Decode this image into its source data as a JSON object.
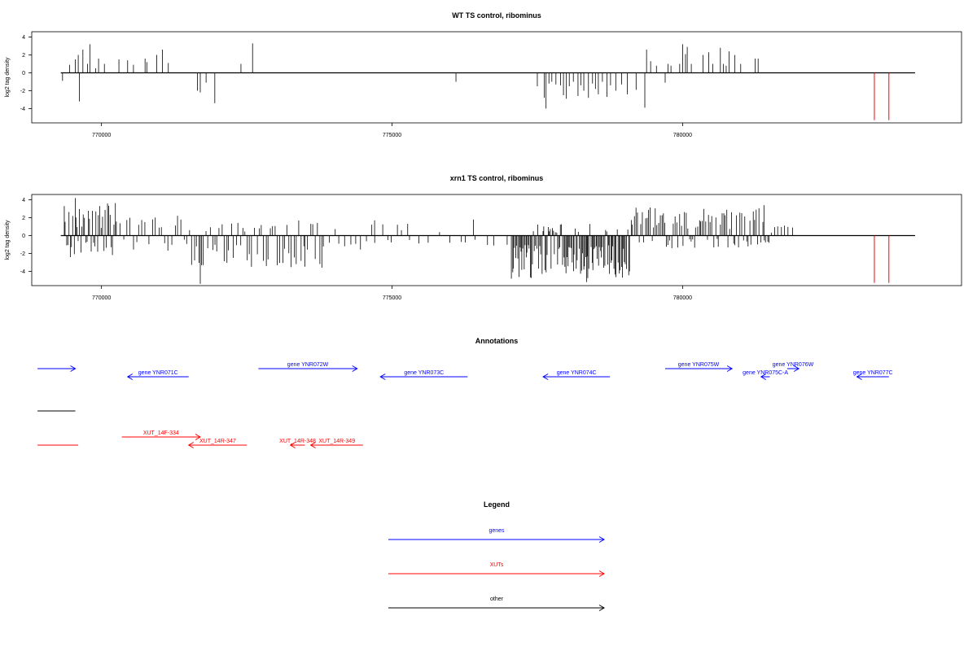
{
  "colors": {
    "gene": "#0000ff",
    "xut": "#ff0000",
    "other": "#000000",
    "bar": "#000000",
    "marker": "#ff0000"
  },
  "chart_data": [
    {
      "type": "bar",
      "title": "WT TS control, ribominus",
      "ylabel": "log2 tag density",
      "xlim": [
        768800,
        784800
      ],
      "ylim": [
        -5.6,
        4.6
      ],
      "xticks": [
        770000,
        775000,
        780000
      ],
      "xtick_labels": [
        "770000",
        "775000",
        "780000"
      ],
      "yticks": [
        4,
        2,
        0,
        -2,
        -4
      ],
      "ytick_labels": [
        "4",
        "2",
        "0",
        "-2",
        "-4"
      ],
      "x_start": 769300,
      "x_end": 784000,
      "red_markers": [
        783300,
        783550
      ],
      "points": [
        [
          769330,
          -0.9
        ],
        [
          769450,
          0.9
        ],
        [
          769550,
          1.5
        ],
        [
          769600,
          2.0
        ],
        [
          769620,
          -3.2
        ],
        [
          769680,
          2.6
        ],
        [
          769760,
          1.0
        ],
        [
          769800,
          3.2
        ],
        [
          769900,
          0.5
        ],
        [
          769950,
          1.6
        ],
        [
          770050,
          1.0
        ],
        [
          770300,
          1.5
        ],
        [
          770450,
          1.4
        ],
        [
          770550,
          0.9
        ],
        [
          770750,
          1.6
        ],
        [
          770780,
          1.2
        ],
        [
          770950,
          2.0
        ],
        [
          771050,
          2.6
        ],
        [
          771150,
          1.1
        ],
        [
          771650,
          -2.0
        ],
        [
          771700,
          -2.2
        ],
        [
          771800,
          -1.1
        ],
        [
          771950,
          -3.4
        ],
        [
          772400,
          1.0
        ],
        [
          772600,
          3.3
        ],
        [
          776100,
          -1.0
        ],
        [
          777500,
          -1.5
        ],
        [
          777620,
          -2.8
        ],
        [
          777650,
          -4.0
        ],
        [
          777700,
          -1.2
        ],
        [
          777750,
          -1.0
        ],
        [
          777820,
          -1.3
        ],
        [
          777900,
          -1.4
        ],
        [
          777950,
          -2.5
        ],
        [
          778000,
          -2.9
        ],
        [
          778050,
          -1.5
        ],
        [
          778120,
          -1.0
        ],
        [
          778200,
          -2.6
        ],
        [
          778250,
          -1.4
        ],
        [
          778300,
          -2.0
        ],
        [
          778380,
          -2.8
        ],
        [
          778450,
          -1.2
        ],
        [
          778500,
          -1.8
        ],
        [
          778550,
          -2.4
        ],
        [
          778620,
          -1.0
        ],
        [
          778700,
          -2.7
        ],
        [
          778760,
          -1.4
        ],
        [
          778850,
          -2.0
        ],
        [
          778950,
          -1.3
        ],
        [
          779050,
          -2.4
        ],
        [
          779200,
          -1.9
        ],
        [
          779350,
          -3.9
        ],
        [
          779380,
          2.6
        ],
        [
          779450,
          1.3
        ],
        [
          779550,
          0.8
        ],
        [
          779700,
          -1.1
        ],
        [
          779750,
          1.0
        ],
        [
          779800,
          0.8
        ],
        [
          779950,
          1.0
        ],
        [
          780000,
          3.2
        ],
        [
          780050,
          2.1
        ],
        [
          780080,
          2.9
        ],
        [
          780150,
          1.0
        ],
        [
          780350,
          2.0
        ],
        [
          780450,
          2.3
        ],
        [
          780520,
          1.0
        ],
        [
          780650,
          2.8
        ],
        [
          780700,
          1.0
        ],
        [
          780750,
          0.8
        ],
        [
          780800,
          2.4
        ],
        [
          780900,
          2.0
        ],
        [
          781000,
          1.0
        ],
        [
          781250,
          1.6
        ],
        [
          781300,
          1.6
        ]
      ]
    },
    {
      "type": "bar",
      "title": "xrn1 TS control, ribominus",
      "ylabel": "log2 tag density",
      "xlim": [
        768800,
        784800
      ],
      "ylim": [
        -5.6,
        4.6
      ],
      "xticks": [
        770000,
        775000,
        780000
      ],
      "xtick_labels": [
        "770000",
        "775000",
        "780000"
      ],
      "yticks": [
        4,
        2,
        0,
        -2,
        -4
      ],
      "ytick_labels": [
        "4",
        "2",
        "0",
        "-2",
        "-4"
      ],
      "x_start": 769300,
      "x_end": 784000,
      "red_markers": [
        783300,
        783550
      ],
      "generator": "dense",
      "clusters": [
        {
          "from": 769350,
          "to": 770250,
          "step": 22,
          "pos": 3.3,
          "neg": 2.4
        },
        {
          "from": 770250,
          "to": 771500,
          "step": 55,
          "pos": 2.0,
          "neg": 1.5
        },
        {
          "from": 771500,
          "to": 773800,
          "step": 40,
          "pos": 1.5,
          "neg": 3.5
        },
        {
          "from": 773800,
          "to": 775300,
          "step": 90,
          "pos": 1.2,
          "neg": 1.6
        },
        {
          "from": 775300,
          "to": 777000,
          "step": 160,
          "pos": 0.6,
          "neg": 1.0
        },
        {
          "from": 777050,
          "to": 779100,
          "step": 18,
          "pos": 1.2,
          "neg": 4.2
        },
        {
          "from": 779100,
          "to": 781500,
          "step": 28,
          "pos": 2.8,
          "neg": 1.3
        },
        {
          "from": 781500,
          "to": 781900,
          "step": 60,
          "pos": 1.0,
          "neg": 0.2
        }
      ],
      "spikes": [
        [
          769550,
          4.2
        ],
        [
          771700,
          -5.4
        ],
        [
          781400,
          3.4
        ],
        [
          778350,
          -5.2
        ],
        [
          776400,
          1.8
        ],
        [
          774700,
          1.7
        ]
      ]
    }
  ],
  "annotations": {
    "title": "Annotations",
    "genes": [
      {
        "label": "",
        "start": 768900,
        "end": 769550,
        "dir": "right",
        "row": 0
      },
      {
        "label": "gene YNR071C",
        "start": 770450,
        "end": 771500,
        "dir": "left",
        "row": 1
      },
      {
        "label": "gene YNR072W",
        "start": 772700,
        "end": 774400,
        "dir": "right",
        "row": 0
      },
      {
        "label": "gene YNR073C",
        "start": 774800,
        "end": 776300,
        "dir": "left",
        "row": 1
      },
      {
        "label": "gene YNR074C",
        "start": 777600,
        "end": 778750,
        "dir": "left",
        "row": 1
      },
      {
        "label": "gene YNR075W",
        "start": 779700,
        "end": 780850,
        "dir": "right",
        "row": 0
      },
      {
        "label": "gene YNR075C-A",
        "start": 781350,
        "end": 781500,
        "dir": "left",
        "row": 1
      },
      {
        "label": "gene YNR076W",
        "start": 781800,
        "end": 782000,
        "dir": "right",
        "row": 0
      },
      {
        "label": "gene YNR077C",
        "start": 783000,
        "end": 783550,
        "dir": "left",
        "row": 1
      }
    ],
    "other": [
      {
        "start": 768900,
        "end": 769550
      }
    ],
    "xuts": [
      {
        "label": "",
        "start": 768900,
        "end": 769600,
        "dir": "none",
        "row": 1
      },
      {
        "label": "XUT_14F-334",
        "start": 770350,
        "end": 771700,
        "dir": "right",
        "row": 0
      },
      {
        "label": "XUT_14R-347",
        "start": 771500,
        "end": 772500,
        "dir": "left",
        "row": 1
      },
      {
        "label": "XUT_14R-348",
        "start": 773250,
        "end": 773500,
        "dir": "left",
        "row": 1
      },
      {
        "label": "XUT_14R-349",
        "start": 773600,
        "end": 774500,
        "dir": "left",
        "row": 1
      }
    ]
  },
  "legend": {
    "title": "Legend",
    "items": [
      {
        "label": "genes",
        "color": "#0000ff"
      },
      {
        "label": "XUTs",
        "color": "#ff0000"
      },
      {
        "label": "other",
        "color": "#000000"
      }
    ]
  }
}
